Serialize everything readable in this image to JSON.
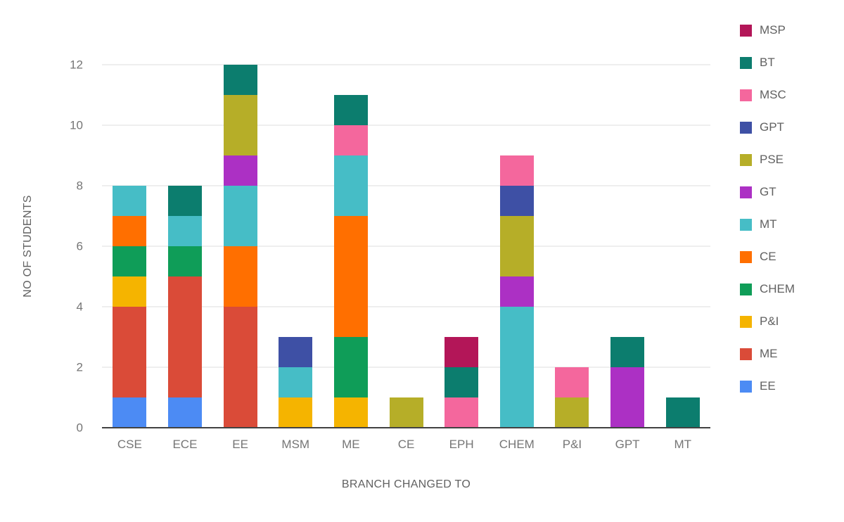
{
  "chart_data": {
    "type": "bar",
    "stacked": true,
    "title": "",
    "xlabel": "BRANCH CHANGED TO",
    "ylabel": "NO OF STUDENTS",
    "ylim": [
      0,
      12
    ],
    "yticks": [
      0,
      2,
      4,
      6,
      8,
      10,
      12
    ],
    "grid": true,
    "legend_position": "right",
    "categories": [
      "CSE",
      "ECE",
      "EE",
      "MSM",
      "ME",
      "CE",
      "EPH",
      "CHEM",
      "P&I",
      "GPT",
      "MT"
    ],
    "series": [
      {
        "name": "EE",
        "color": "#4c8bf4",
        "values": [
          1,
          1,
          0,
          0,
          0,
          0,
          0,
          0,
          0,
          0,
          0
        ]
      },
      {
        "name": "ME",
        "color": "#da4b38",
        "values": [
          3,
          4,
          4,
          0,
          0,
          0,
          0,
          0,
          0,
          0,
          0
        ]
      },
      {
        "name": "P&I",
        "color": "#f5b400",
        "values": [
          1,
          0,
          0,
          1,
          1,
          0,
          0,
          0,
          0,
          0,
          0
        ]
      },
      {
        "name": "CHEM",
        "color": "#0f9d58",
        "values": [
          1,
          1,
          0,
          0,
          2,
          0,
          0,
          0,
          0,
          0,
          0
        ]
      },
      {
        "name": "CE",
        "color": "#ff6f00",
        "values": [
          1,
          0,
          2,
          0,
          4,
          0,
          0,
          0,
          0,
          0,
          0
        ]
      },
      {
        "name": "MT",
        "color": "#46bdc6",
        "values": [
          1,
          1,
          2,
          1,
          2,
          0,
          0,
          4,
          0,
          0,
          0
        ]
      },
      {
        "name": "GT",
        "color": "#ac30c4",
        "values": [
          0,
          0,
          1,
          0,
          0,
          0,
          0,
          1,
          0,
          2,
          0
        ]
      },
      {
        "name": "PSE",
        "color": "#b6ae28",
        "values": [
          0,
          0,
          2,
          0,
          0,
          1,
          0,
          2,
          1,
          0,
          0
        ]
      },
      {
        "name": "GPT",
        "color": "#3e50a5",
        "values": [
          0,
          0,
          0,
          1,
          0,
          0,
          0,
          1,
          0,
          0,
          0
        ]
      },
      {
        "name": "MSC",
        "color": "#f4679d",
        "values": [
          0,
          0,
          0,
          0,
          1,
          0,
          1,
          1,
          1,
          0,
          0
        ]
      },
      {
        "name": "BT",
        "color": "#0c7d6e",
        "values": [
          0,
          1,
          1,
          0,
          1,
          0,
          1,
          0,
          0,
          1,
          1
        ]
      },
      {
        "name": "MSP",
        "color": "#b31658",
        "values": [
          0,
          0,
          0,
          0,
          0,
          0,
          1,
          0,
          0,
          0,
          0
        ]
      }
    ],
    "legend_order": [
      "MSP",
      "BT",
      "MSC",
      "GPT",
      "PSE",
      "GT",
      "MT",
      "CE",
      "CHEM",
      "P&I",
      "ME",
      "EE"
    ]
  }
}
